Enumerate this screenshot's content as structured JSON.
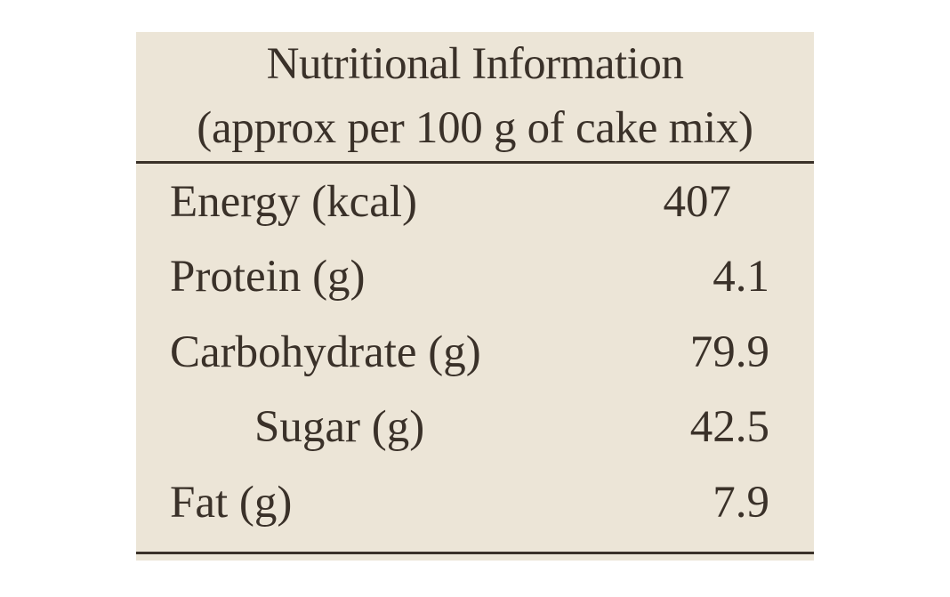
{
  "panel": {
    "title": "Nutritional Information",
    "subtitle": "(approx per 100 g  of cake mix)"
  },
  "rows": [
    {
      "label": "Energy (kcal)",
      "value": "407",
      "indent": false
    },
    {
      "label": "Protein (g)",
      "value": "4.1",
      "indent": false
    },
    {
      "label": "Carbohydrate (g)",
      "value": "79.9",
      "indent": false
    },
    {
      "label": "Sugar (g)",
      "value": "42.5",
      "indent": true
    },
    {
      "label": "Fat (g)",
      "value": "7.9",
      "indent": false
    }
  ],
  "colors": {
    "background": "#ece5d7",
    "text": "#3a3129"
  }
}
